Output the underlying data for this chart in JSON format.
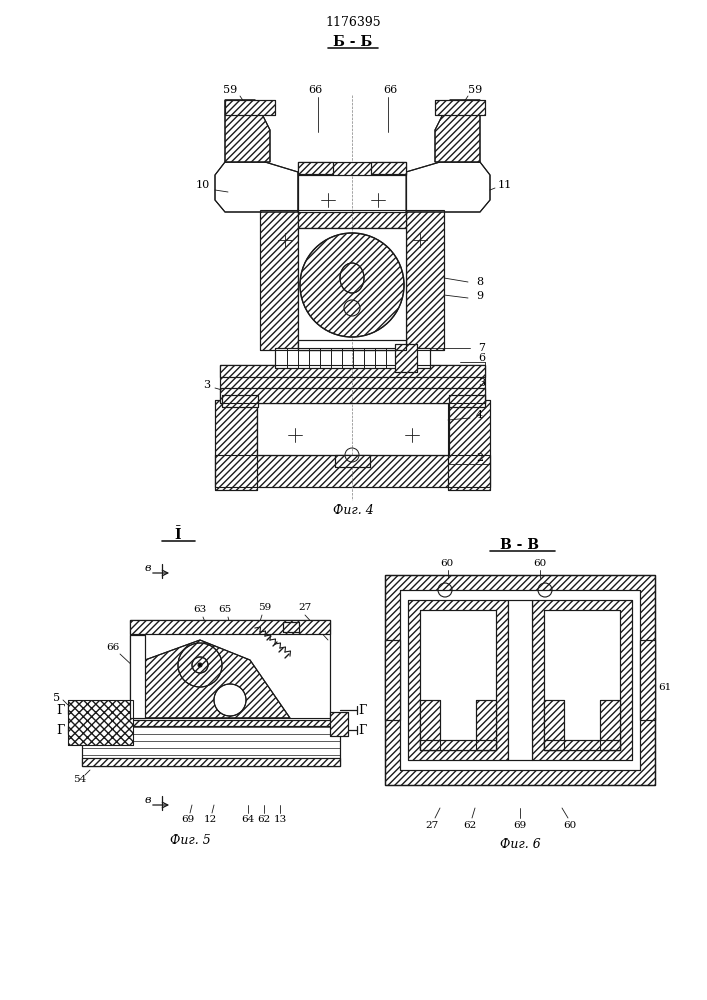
{
  "title_number": "1176395",
  "bb_label": "Б - Б",
  "vv_label": "В - В",
  "I_label": "Ī",
  "fig4_label": "Фиг. 4",
  "fig5_label": "Фиг. 5",
  "fig6_label": "Фиг. 6",
  "bg_color": "#ffffff",
  "lc": "#1a1a1a"
}
